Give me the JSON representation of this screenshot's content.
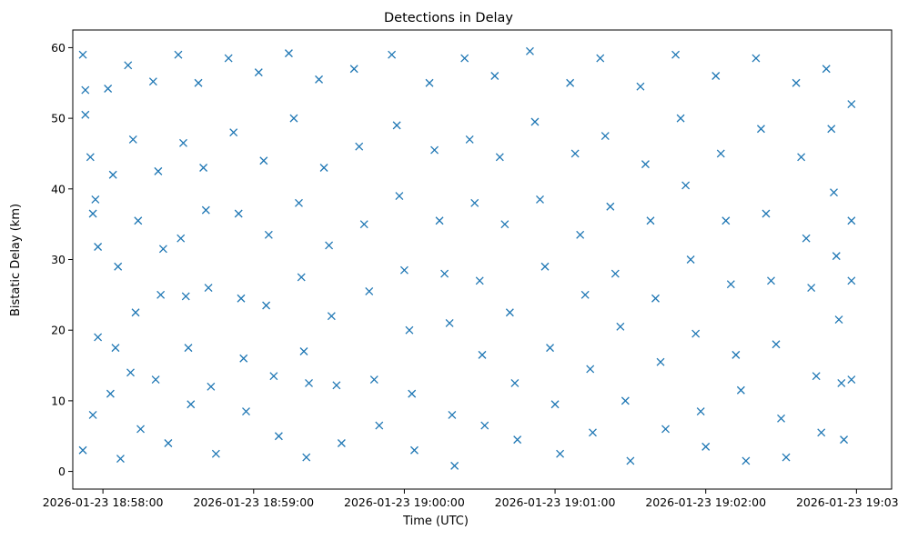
{
  "chart_data": {
    "type": "scatter",
    "title": "Detections in Delay",
    "xlabel": "Time (UTC)",
    "ylabel": "Bistatic Delay (km)",
    "x_axis": {
      "kind": "time",
      "range": [
        "2026-01-23 18:57:48",
        "2026-01-23 19:03:14"
      ],
      "ticks": [
        "2026-01-23 18:58:00",
        "2026-01-23 18:59:00",
        "2026-01-23 19:00:00",
        "2026-01-23 19:01:00",
        "2026-01-23 19:02:00",
        "2026-01-23 19:03:00"
      ]
    },
    "y_axis": {
      "range": [
        -2.5,
        62.5
      ],
      "ticks": [
        0,
        10,
        20,
        30,
        40,
        50,
        60
      ]
    },
    "marker": "x",
    "color": "#1f77b4",
    "grid": false,
    "legend": "none",
    "series": [
      {
        "points": [
          [
            "2026-01-23 18:57:52",
            59
          ],
          [
            "2026-01-23 18:57:53",
            54
          ],
          [
            "2026-01-23 18:57:53",
            50.5
          ],
          [
            "2026-01-23 18:57:55",
            44.5
          ],
          [
            "2026-01-23 18:57:56",
            36.5
          ],
          [
            "2026-01-23 18:57:57",
            38.5
          ],
          [
            "2026-01-23 18:57:58",
            31.8
          ],
          [
            "2026-01-23 18:57:58",
            19
          ],
          [
            "2026-01-23 18:57:56",
            8
          ],
          [
            "2026-01-23 18:57:52",
            3
          ],
          [
            "2026-01-23 18:58:02",
            54.2
          ],
          [
            "2026-01-23 18:58:04",
            42
          ],
          [
            "2026-01-23 18:58:06",
            29
          ],
          [
            "2026-01-23 18:58:05",
            17.5
          ],
          [
            "2026-01-23 18:58:03",
            11
          ],
          [
            "2026-01-23 18:58:07",
            1.8
          ],
          [
            "2026-01-23 18:58:10",
            57.5
          ],
          [
            "2026-01-23 18:58:12",
            47
          ],
          [
            "2026-01-23 18:58:14",
            35.5
          ],
          [
            "2026-01-23 18:58:13",
            22.5
          ],
          [
            "2026-01-23 18:58:11",
            14
          ],
          [
            "2026-01-23 18:58:15",
            6
          ],
          [
            "2026-01-23 18:58:20",
            55.2
          ],
          [
            "2026-01-23 18:58:22",
            42.5
          ],
          [
            "2026-01-23 18:58:24",
            31.5
          ],
          [
            "2026-01-23 18:58:23",
            25
          ],
          [
            "2026-01-23 18:58:21",
            13
          ],
          [
            "2026-01-23 18:58:26",
            4
          ],
          [
            "2026-01-23 18:58:30",
            59
          ],
          [
            "2026-01-23 18:58:32",
            46.5
          ],
          [
            "2026-01-23 18:58:31",
            33
          ],
          [
            "2026-01-23 18:58:33",
            24.8
          ],
          [
            "2026-01-23 18:58:34",
            17.5
          ],
          [
            "2026-01-23 18:58:35",
            9.5
          ],
          [
            "2026-01-23 18:58:38",
            55
          ],
          [
            "2026-01-23 18:58:40",
            43
          ],
          [
            "2026-01-23 18:58:41",
            37
          ],
          [
            "2026-01-23 18:58:42",
            26
          ],
          [
            "2026-01-23 18:58:43",
            12
          ],
          [
            "2026-01-23 18:58:45",
            2.5
          ],
          [
            "2026-01-23 18:58:50",
            58.5
          ],
          [
            "2026-01-23 18:58:52",
            48
          ],
          [
            "2026-01-23 18:58:54",
            36.5
          ],
          [
            "2026-01-23 18:58:55",
            24.5
          ],
          [
            "2026-01-23 18:58:56",
            16
          ],
          [
            "2026-01-23 18:58:57",
            8.5
          ],
          [
            "2026-01-23 18:59:02",
            56.5
          ],
          [
            "2026-01-23 18:59:04",
            44
          ],
          [
            "2026-01-23 18:59:06",
            33.5
          ],
          [
            "2026-01-23 18:59:05",
            23.5
          ],
          [
            "2026-01-23 18:59:08",
            13.5
          ],
          [
            "2026-01-23 18:59:10",
            5
          ],
          [
            "2026-01-23 18:59:14",
            59.2
          ],
          [
            "2026-01-23 18:59:16",
            50
          ],
          [
            "2026-01-23 18:59:18",
            38
          ],
          [
            "2026-01-23 18:59:19",
            27.5
          ],
          [
            "2026-01-23 18:59:20",
            17
          ],
          [
            "2026-01-23 18:59:22",
            12.5
          ],
          [
            "2026-01-23 18:59:21",
            2
          ],
          [
            "2026-01-23 18:59:26",
            55.5
          ],
          [
            "2026-01-23 18:59:28",
            43
          ],
          [
            "2026-01-23 18:59:30",
            32
          ],
          [
            "2026-01-23 18:59:31",
            22
          ],
          [
            "2026-01-23 18:59:33",
            12.2
          ],
          [
            "2026-01-23 18:59:35",
            4
          ],
          [
            "2026-01-23 18:59:40",
            57
          ],
          [
            "2026-01-23 18:59:42",
            46
          ],
          [
            "2026-01-23 18:59:44",
            35
          ],
          [
            "2026-01-23 18:59:46",
            25.5
          ],
          [
            "2026-01-23 18:59:48",
            13
          ],
          [
            "2026-01-23 18:59:50",
            6.5
          ],
          [
            "2026-01-23 18:59:55",
            59
          ],
          [
            "2026-01-23 18:59:57",
            49
          ],
          [
            "2026-01-23 18:59:58",
            39
          ],
          [
            "2026-01-23 19:00:00",
            28.5
          ],
          [
            "2026-01-23 19:00:02",
            20
          ],
          [
            "2026-01-23 19:00:03",
            11
          ],
          [
            "2026-01-23 19:00:04",
            3
          ],
          [
            "2026-01-23 19:00:10",
            55
          ],
          [
            "2026-01-23 19:00:12",
            45.5
          ],
          [
            "2026-01-23 19:00:14",
            35.5
          ],
          [
            "2026-01-23 19:00:16",
            28
          ],
          [
            "2026-01-23 19:00:18",
            21
          ],
          [
            "2026-01-23 19:00:19",
            8
          ],
          [
            "2026-01-23 19:00:20",
            0.8
          ],
          [
            "2026-01-23 19:00:24",
            58.5
          ],
          [
            "2026-01-23 19:00:26",
            47
          ],
          [
            "2026-01-23 19:00:28",
            38
          ],
          [
            "2026-01-23 19:00:30",
            27
          ],
          [
            "2026-01-23 19:00:31",
            16.5
          ],
          [
            "2026-01-23 19:00:32",
            6.5
          ],
          [
            "2026-01-23 19:00:36",
            56
          ],
          [
            "2026-01-23 19:00:38",
            44.5
          ],
          [
            "2026-01-23 19:00:40",
            35
          ],
          [
            "2026-01-23 19:00:42",
            22.5
          ],
          [
            "2026-01-23 19:00:44",
            12.5
          ],
          [
            "2026-01-23 19:00:45",
            4.5
          ],
          [
            "2026-01-23 19:00:50",
            59.5
          ],
          [
            "2026-01-23 19:00:52",
            49.5
          ],
          [
            "2026-01-23 19:00:54",
            38.5
          ],
          [
            "2026-01-23 19:00:56",
            29
          ],
          [
            "2026-01-23 19:00:58",
            17.5
          ],
          [
            "2026-01-23 19:01:00",
            9.5
          ],
          [
            "2026-01-23 19:01:02",
            2.5
          ],
          [
            "2026-01-23 19:01:06",
            55
          ],
          [
            "2026-01-23 19:01:08",
            45
          ],
          [
            "2026-01-23 19:01:10",
            33.5
          ],
          [
            "2026-01-23 19:01:12",
            25
          ],
          [
            "2026-01-23 19:01:14",
            14.5
          ],
          [
            "2026-01-23 19:01:15",
            5.5
          ],
          [
            "2026-01-23 19:01:18",
            58.5
          ],
          [
            "2026-01-23 19:01:20",
            47.5
          ],
          [
            "2026-01-23 19:01:22",
            37.5
          ],
          [
            "2026-01-23 19:01:24",
            28
          ],
          [
            "2026-01-23 19:01:26",
            20.5
          ],
          [
            "2026-01-23 19:01:28",
            10
          ],
          [
            "2026-01-23 19:01:30",
            1.5
          ],
          [
            "2026-01-23 19:01:34",
            54.5
          ],
          [
            "2026-01-23 19:01:36",
            43.5
          ],
          [
            "2026-01-23 19:01:38",
            35.5
          ],
          [
            "2026-01-23 19:01:40",
            24.5
          ],
          [
            "2026-01-23 19:01:42",
            15.5
          ],
          [
            "2026-01-23 19:01:44",
            6
          ],
          [
            "2026-01-23 19:01:48",
            59
          ],
          [
            "2026-01-23 19:01:50",
            50
          ],
          [
            "2026-01-23 19:01:52",
            40.5
          ],
          [
            "2026-01-23 19:01:54",
            30
          ],
          [
            "2026-01-23 19:01:56",
            19.5
          ],
          [
            "2026-01-23 19:01:58",
            8.5
          ],
          [
            "2026-01-23 19:02:00",
            3.5
          ],
          [
            "2026-01-23 19:02:04",
            56
          ],
          [
            "2026-01-23 19:02:06",
            45
          ],
          [
            "2026-01-23 19:02:08",
            35.5
          ],
          [
            "2026-01-23 19:02:10",
            26.5
          ],
          [
            "2026-01-23 19:02:12",
            16.5
          ],
          [
            "2026-01-23 19:02:14",
            11.5
          ],
          [
            "2026-01-23 19:02:16",
            1.5
          ],
          [
            "2026-01-23 19:02:20",
            58.5
          ],
          [
            "2026-01-23 19:02:22",
            48.5
          ],
          [
            "2026-01-23 19:02:24",
            36.5
          ],
          [
            "2026-01-23 19:02:26",
            27
          ],
          [
            "2026-01-23 19:02:28",
            18
          ],
          [
            "2026-01-23 19:02:30",
            7.5
          ],
          [
            "2026-01-23 19:02:32",
            2
          ],
          [
            "2026-01-23 19:02:36",
            55
          ],
          [
            "2026-01-23 19:02:38",
            44.5
          ],
          [
            "2026-01-23 19:02:40",
            33
          ],
          [
            "2026-01-23 19:02:42",
            26
          ],
          [
            "2026-01-23 19:02:44",
            13.5
          ],
          [
            "2026-01-23 19:02:46",
            5.5
          ],
          [
            "2026-01-23 19:02:48",
            57
          ],
          [
            "2026-01-23 19:02:50",
            48.5
          ],
          [
            "2026-01-23 19:02:51",
            39.5
          ],
          [
            "2026-01-23 19:02:52",
            30.5
          ],
          [
            "2026-01-23 19:02:53",
            21.5
          ],
          [
            "2026-01-23 19:02:54",
            12.5
          ],
          [
            "2026-01-23 19:02:55",
            4.5
          ],
          [
            "2026-01-23 19:02:58",
            52
          ],
          [
            "2026-01-23 19:02:58",
            35.5
          ],
          [
            "2026-01-23 19:02:58",
            27
          ],
          [
            "2026-01-23 19:02:58",
            13
          ]
        ]
      }
    ]
  }
}
